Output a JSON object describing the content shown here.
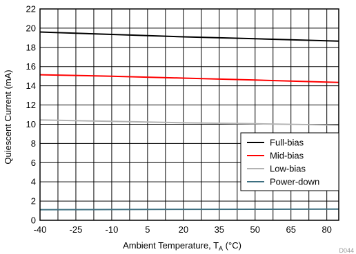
{
  "chart_data": {
    "type": "line",
    "xlabel_main": "Ambient Temperature, T",
    "xlabel_sub": "A",
    "xlabel_unit": " (°C)",
    "ylabel": "Quiescent Current (mA)",
    "xlim": [
      -40,
      85
    ],
    "ylim": [
      0,
      22
    ],
    "x_ticks": [
      -40,
      -25,
      -10,
      5,
      20,
      35,
      50,
      65,
      80
    ],
    "y_ticks": [
      0,
      2,
      4,
      6,
      8,
      10,
      12,
      14,
      16,
      18,
      20,
      22
    ],
    "x_minor_ticks": [
      -32.5,
      -17.5,
      -2.5,
      12.5,
      27.5,
      42.5,
      57.5,
      72.5
    ],
    "grid": true,
    "legend_position": "lower-right",
    "figure_id": "D044",
    "series": [
      {
        "name": "Full-bias",
        "color": "#000000",
        "x": [
          -40,
          -10,
          20,
          50,
          85
        ],
        "y": [
          19.6,
          19.35,
          19.1,
          18.9,
          18.65
        ]
      },
      {
        "name": "Mid-bias",
        "color": "#ff0000",
        "x": [
          -40,
          -10,
          20,
          50,
          85
        ],
        "y": [
          15.15,
          15.0,
          14.8,
          14.6,
          14.35
        ]
      },
      {
        "name": "Low-bias",
        "color": "#b3b3b3",
        "x": [
          -40,
          -10,
          20,
          50,
          85
        ],
        "y": [
          10.45,
          10.3,
          10.15,
          10.05,
          9.9
        ]
      },
      {
        "name": "Power-down",
        "color": "#3d6f80",
        "x": [
          -40,
          -10,
          20,
          50,
          85
        ],
        "y": [
          1.1,
          1.12,
          1.14,
          1.15,
          1.17
        ]
      }
    ]
  }
}
